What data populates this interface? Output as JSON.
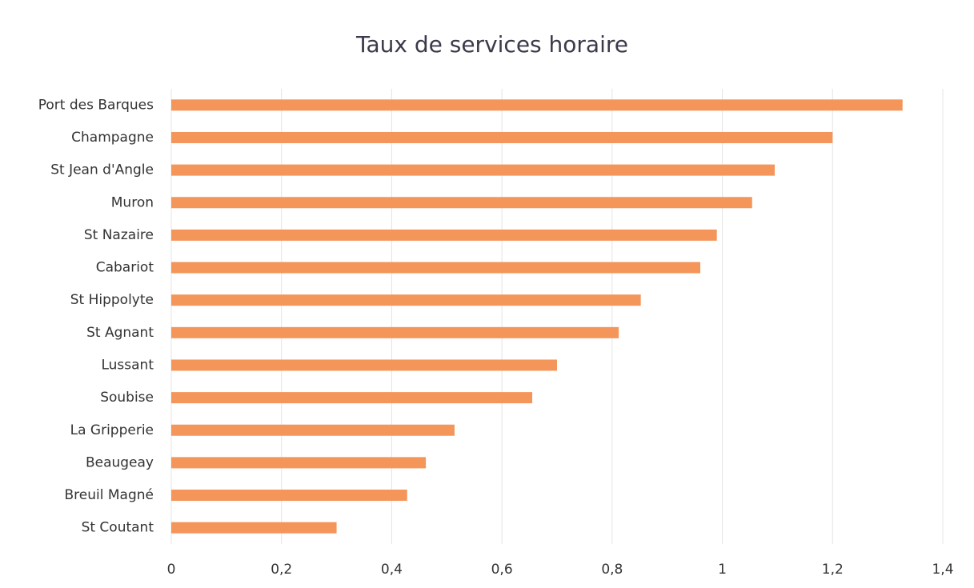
{
  "chart_data": {
    "type": "barh",
    "title": "Taux de services horaire",
    "categories": [
      "Port des Barques",
      "Champagne",
      "St Jean d'Angle",
      "Muron",
      "St Nazaire",
      "Cabariot",
      "St Hippolyte",
      "St Agnant",
      "Lussant",
      "Soubise",
      "La Gripperie",
      "Beaugeay",
      "Breuil Magné",
      "St Coutant"
    ],
    "values": [
      1.327,
      1.2,
      1.095,
      1.054,
      0.99,
      0.96,
      0.852,
      0.812,
      0.7,
      0.655,
      0.514,
      0.462,
      0.428,
      0.3
    ],
    "color": "#f4955a",
    "xlim": [
      0,
      1.4
    ],
    "xticks": [
      0,
      {
        "value": 0.2,
        "label": "0,2"
      },
      {
        "value": 0.4,
        "label": "0,4"
      },
      {
        "value": 0.6,
        "label": "0,6"
      },
      {
        "value": 0.8,
        "label": "0,8"
      },
      1,
      {
        "value": 1.2,
        "label": "1,2"
      },
      {
        "value": 1.4,
        "label": "1,4"
      }
    ],
    "grid": true
  }
}
